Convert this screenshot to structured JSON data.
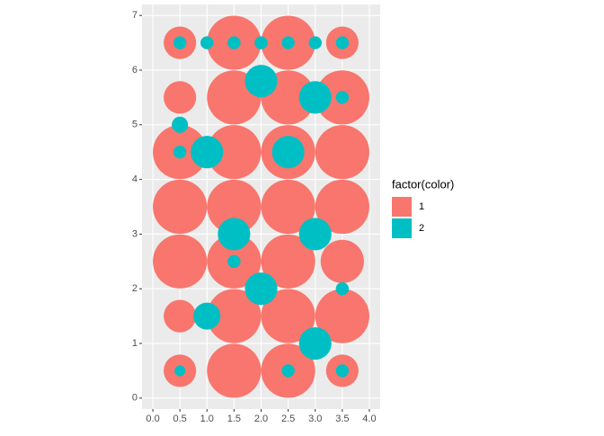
{
  "chart_data": {
    "type": "scatter",
    "legend_title": "factor(color)",
    "xlim": [
      -0.2,
      4.2
    ],
    "ylim": [
      -0.2,
      7.2
    ],
    "xticks": [
      {
        "value": 0,
        "label": "0.0"
      },
      0.5,
      {
        "value": 1,
        "label": "1.0"
      },
      1.5,
      {
        "value": 2,
        "label": "2.0"
      },
      2.5,
      {
        "value": 3,
        "label": "3.0"
      },
      3.5,
      {
        "value": 4,
        "label": "4.0"
      }
    ],
    "yticks": [
      0,
      1,
      2,
      3,
      4,
      5,
      6,
      7
    ],
    "grid": true,
    "series": [
      {
        "name": "1",
        "color": "#F8766D",
        "x": [
          0.5,
          1.5,
          2.5,
          3.5,
          0.5,
          1.5,
          2.5,
          3.5,
          0.5,
          1.5,
          2.5,
          3.5,
          0.5,
          1.5,
          2.5,
          3.5,
          0.5,
          1.5,
          2.5,
          3.5,
          0.5,
          1.5,
          2.5,
          3.5,
          0.5,
          1.5,
          2.5,
          3.5
        ],
        "values": [
          0.5,
          0.5,
          0.5,
          0.5,
          1.5,
          1.5,
          1.5,
          1.5,
          2.5,
          2.5,
          2.5,
          2.5,
          3.5,
          3.5,
          3.5,
          3.5,
          4.5,
          4.5,
          4.5,
          4.5,
          5.5,
          5.5,
          5.5,
          5.5,
          6.5,
          6.5,
          6.5,
          6.5
        ],
        "sizes": [
          0.3,
          0.5,
          0.5,
          0.3,
          0.3,
          0.5,
          0.5,
          0.5,
          0.5,
          0.5,
          0.5,
          0.4,
          0.5,
          0.5,
          0.5,
          0.5,
          0.5,
          0.5,
          0.5,
          0.5,
          0.3,
          0.5,
          0.5,
          0.5,
          0.3,
          0.5,
          0.5,
          0.3
        ]
      },
      {
        "name": "2",
        "color": "#00BFC4",
        "x": [
          0.5,
          1,
          1.5,
          2,
          2.5,
          3,
          3.5,
          1,
          2.5,
          1.5,
          3,
          2,
          3,
          1,
          2,
          3,
          0.5,
          0.5,
          3.5,
          2.5,
          0.5,
          3.5,
          1.5,
          3.5
        ],
        "values": [
          6.5,
          6.5,
          6.5,
          6.5,
          6.5,
          6.5,
          6.5,
          4.5,
          4.5,
          3,
          3,
          2,
          1,
          1.5,
          5.8,
          5.5,
          5,
          0.5,
          0.5,
          0.5,
          4.5,
          5.5,
          2.5,
          2
        ],
        "sizes": [
          0.12,
          0.12,
          0.12,
          0.12,
          0.12,
          0.12,
          0.12,
          0.3,
          0.3,
          0.3,
          0.3,
          0.3,
          0.3,
          0.25,
          0.3,
          0.3,
          0.15,
          0.1,
          0.12,
          0.12,
          0.12,
          0.12,
          0.12,
          0.12
        ]
      }
    ]
  }
}
